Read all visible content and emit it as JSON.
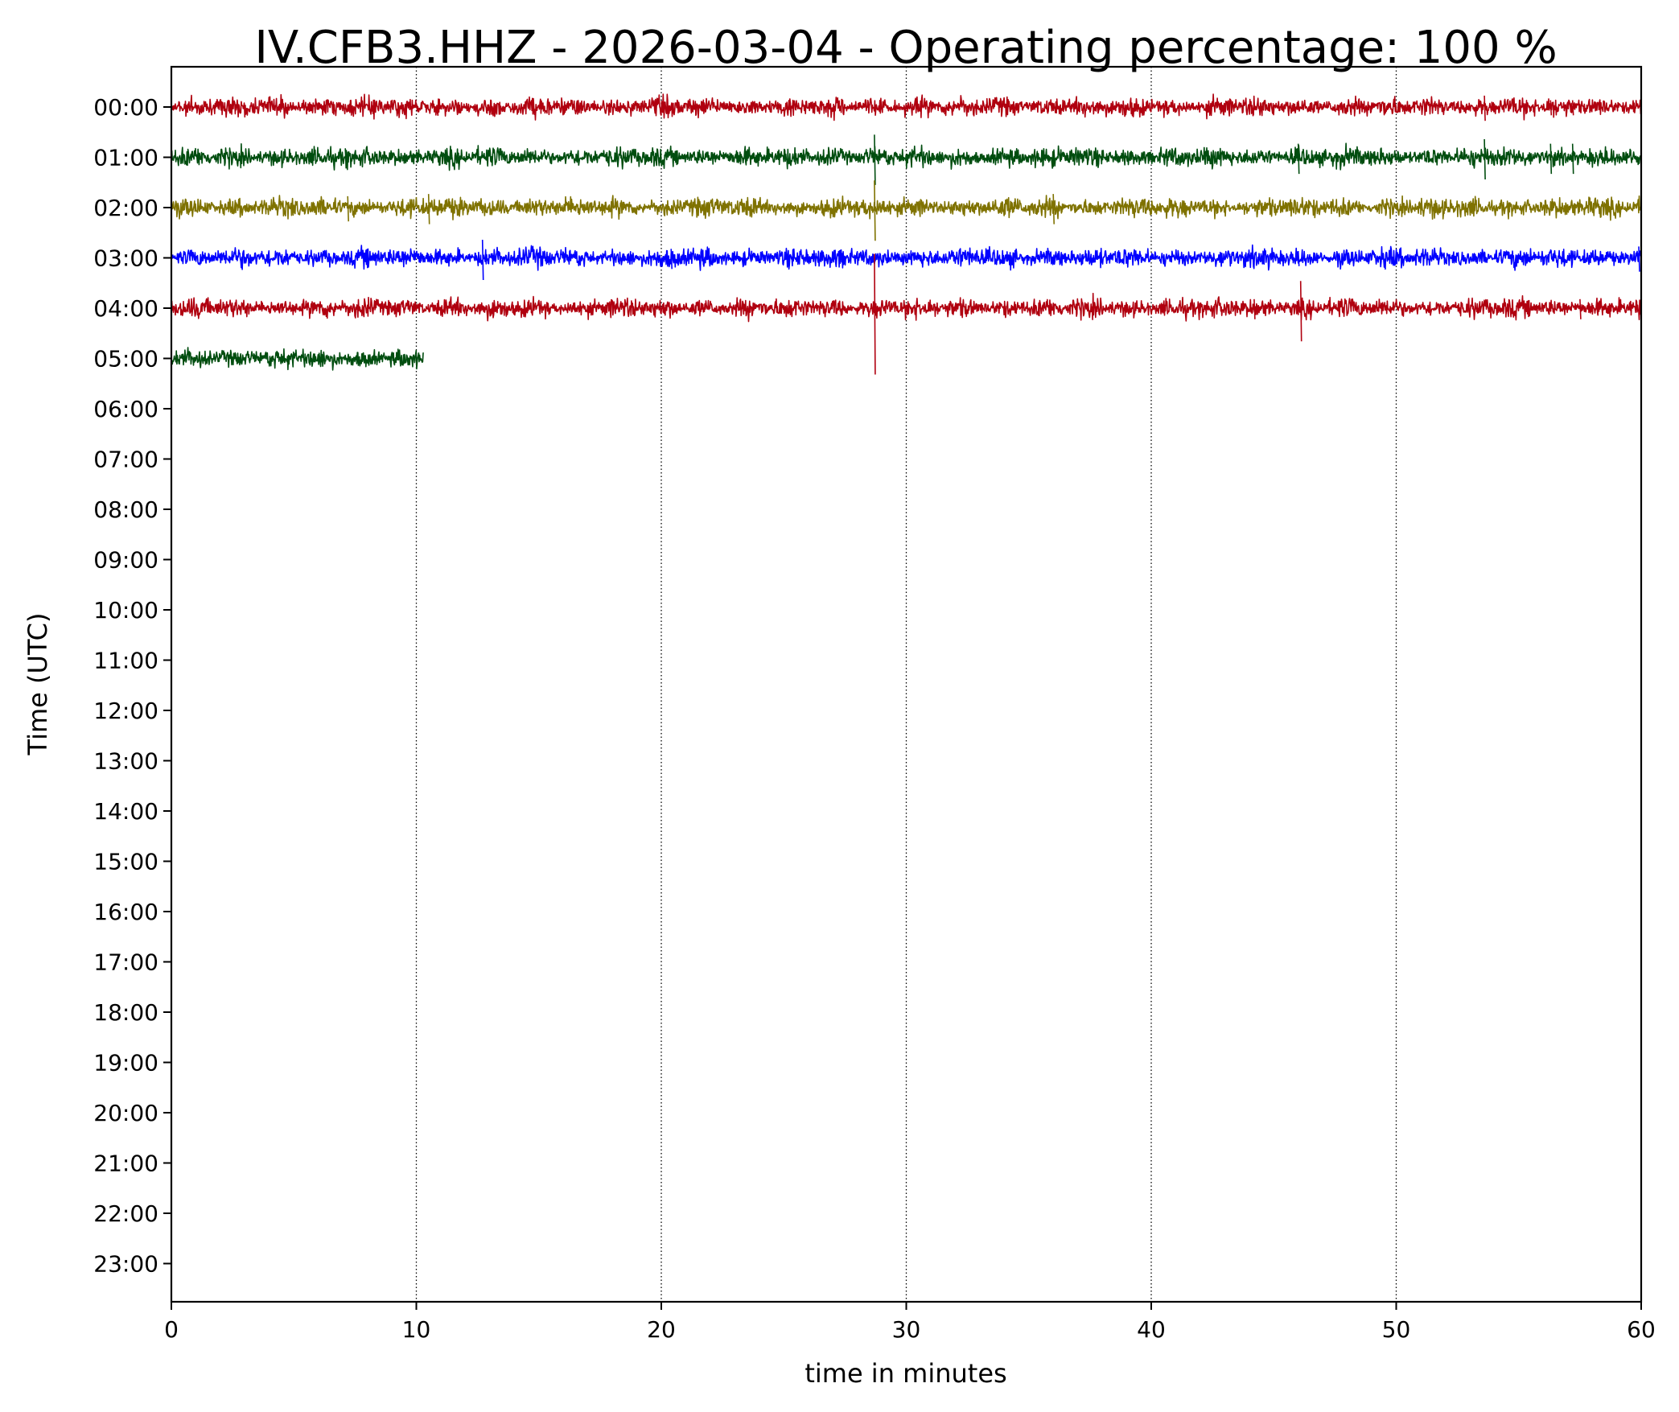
{
  "chart_data": {
    "type": "line",
    "title": "IV.CFB3.HHZ - 2026-03-04 - Operating percentage: 100 %",
    "xlabel": "time in minutes",
    "ylabel": "Time (UTC)",
    "xlim": [
      0,
      60
    ],
    "x_ticks": [
      "0",
      "10",
      "20",
      "30",
      "40",
      "50",
      "60"
    ],
    "y_ticks": [
      "00:00",
      "01:00",
      "02:00",
      "03:00",
      "04:00",
      "05:00",
      "06:00",
      "07:00",
      "08:00",
      "09:00",
      "10:00",
      "11:00",
      "12:00",
      "13:00",
      "14:00",
      "15:00",
      "16:00",
      "17:00",
      "18:00",
      "19:00",
      "20:00",
      "21:00",
      "22:00",
      "23:00"
    ],
    "grid": "vertical dotted at each x tick",
    "series": [
      {
        "hour": "00:00",
        "color": "#b0000f",
        "x_start": 0,
        "x_end": 60,
        "spikes": [
          {
            "x": 53.6,
            "amp": 0.5
          },
          {
            "x": 56.3,
            "amp": 0.3
          },
          {
            "x": 57.2,
            "amp": 0.3
          }
        ]
      },
      {
        "hour": "01:00",
        "color": "#004d0f",
        "x_start": 0,
        "x_end": 60,
        "spikes": [
          {
            "x": 7.1,
            "amp": 0.4
          },
          {
            "x": 28.7,
            "amp": 1.0
          },
          {
            "x": 46.0,
            "amp": 0.6
          },
          {
            "x": 53.6,
            "amp": 0.8
          },
          {
            "x": 56.3,
            "amp": 0.6
          },
          {
            "x": 57.2,
            "amp": 0.6
          }
        ]
      },
      {
        "hour": "02:00",
        "color": "#7f7200",
        "x_start": 0,
        "x_end": 60,
        "spikes": [
          {
            "x": 7.2,
            "amp": 0.5
          },
          {
            "x": 10.5,
            "amp": 0.6
          },
          {
            "x": 28.7,
            "amp": 1.2
          },
          {
            "x": 36.0,
            "amp": 0.6
          }
        ]
      },
      {
        "hour": "03:00",
        "color": "#0000ff",
        "x_start": 0,
        "x_end": 60,
        "spikes": [
          {
            "x": 12.7,
            "amp": 0.8
          },
          {
            "x": 20.4,
            "amp": 0.4
          },
          {
            "x": 46.0,
            "amp": 0.3
          },
          {
            "x": 59.9,
            "amp": 0.5
          }
        ]
      },
      {
        "hour": "04:00",
        "color": "#b0000f",
        "x_start": 0,
        "x_end": 60,
        "spikes": [
          {
            "x": 28.7,
            "amp": 2.4
          },
          {
            "x": 44.2,
            "amp": 0.4
          },
          {
            "x": 46.1,
            "amp": 1.2
          },
          {
            "x": 57.5,
            "amp": 0.4
          }
        ]
      },
      {
        "hour": "05:00",
        "color": "#004d0f",
        "x_start": 0,
        "x_end": 10.3,
        "spikes": []
      }
    ]
  }
}
